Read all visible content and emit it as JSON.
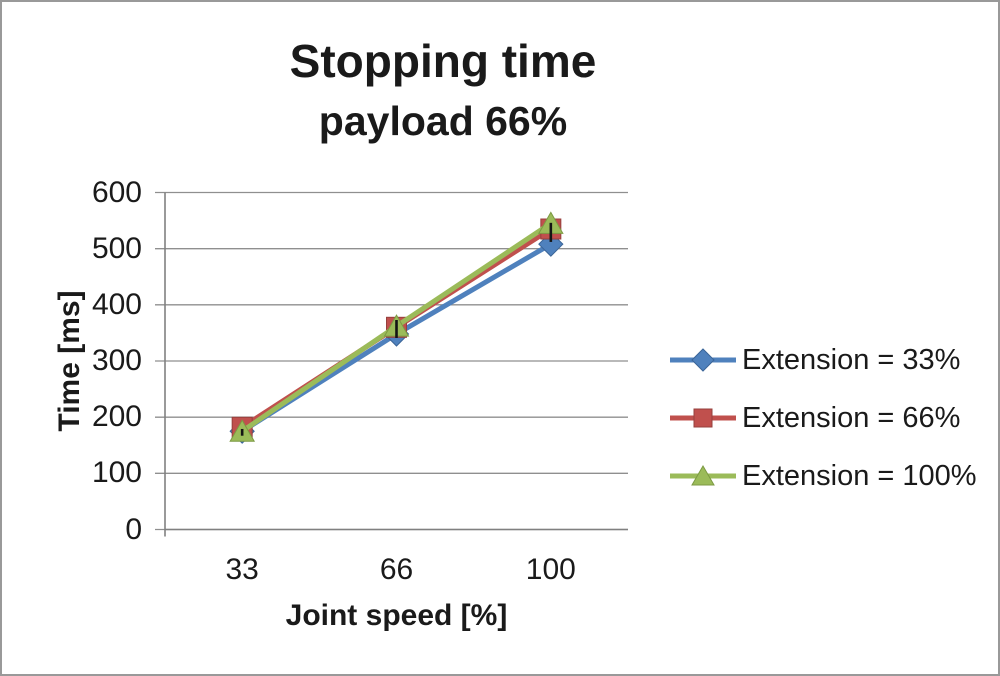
{
  "chart_data": {
    "type": "line",
    "title": "Stopping time",
    "subtitle": "payload 66%",
    "xlabel": "Joint speed [%]",
    "ylabel": "Time [ms]",
    "categories": [
      "33",
      "66",
      "100"
    ],
    "y_ticks": [
      0,
      100,
      200,
      300,
      400,
      500,
      600
    ],
    "ylim": [
      0,
      600
    ],
    "grid": "horizontal",
    "legend_position": "right",
    "series": [
      {
        "name": "Extension = 33%",
        "marker": "diamond",
        "color": "#4F81BD",
        "edge": "#3A6497",
        "values": [
          175,
          348,
          508
        ]
      },
      {
        "name": "Extension = 66%",
        "marker": "square",
        "color": "#C0504D",
        "edge": "#96403D",
        "values": [
          182,
          360,
          535
        ]
      },
      {
        "name": "Extension = 100%",
        "marker": "triangle",
        "color": "#9BBB59",
        "edge": "#7C9A43",
        "values": [
          175,
          362,
          545
        ]
      }
    ],
    "error_marks": [
      {
        "category": "33",
        "from": 167,
        "to": 179
      },
      {
        "category": "66",
        "from": 341,
        "to": 373
      },
      {
        "category": "100",
        "from": 512,
        "to": 546
      }
    ]
  },
  "colors": {
    "grid": "#8f8f8f",
    "axis": "#808080",
    "error": "#141414",
    "text": "#1a1a1a"
  }
}
